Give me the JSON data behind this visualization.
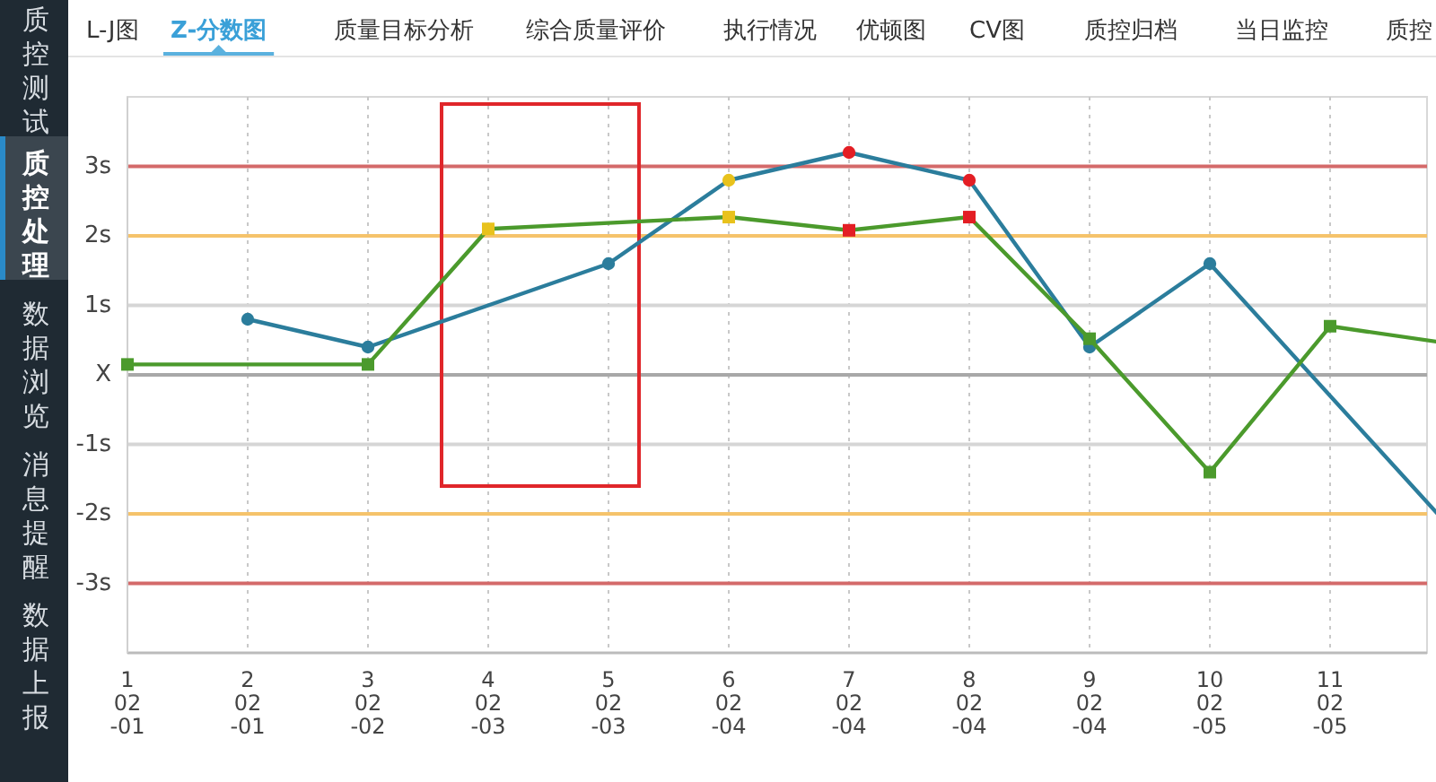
{
  "chart_data": {
    "type": "line",
    "title": "Z-分数图",
    "annotations": [
      "质控测试",
      "质控处理",
      "数据浏览",
      "消息提醒",
      "数据上报",
      "L-J图",
      "质量目标分析",
      "综合质量评价",
      "执行情况",
      "优顿图",
      "CV图",
      "质控归档",
      "当日监控",
      "质控"
    ],
    "categories": [
      "1\n02\n-01",
      "2\n02\n-01",
      "3\n02\n-02",
      "4\n02\n-03",
      "5\n02\n-03",
      "6\n02\n-04",
      "7\n02\n-04",
      "8\n02\n-04",
      "9\n02\n-04",
      "10\n02\n-05",
      "11\n02\n-05",
      null
    ],
    "series": [
      {
        "color": "#2b7d9c",
        "marker": "circle",
        "values": [
          null,
          0.8,
          0.4,
          null,
          1.6,
          2.8,
          3.2,
          2.8,
          0.4,
          1.6,
          null,
          -2.2
        ],
        "colors": [
          null,
          "#2b7d9c",
          "#2b7d9c",
          null,
          "#2b7d9c",
          "#e8c21c",
          "#e31e24",
          "#e31e24",
          "#2b7d9c",
          "#2b7d9c",
          null,
          null
        ]
      },
      {
        "color": "#4b9a2c",
        "marker": "square",
        "values": [
          0.15,
          null,
          0.15,
          2.1,
          null,
          2.27,
          2.08,
          2.27,
          0.52,
          -1.4,
          0.7,
          0.45
        ],
        "colors": [
          "#4b9a2c",
          null,
          "#4b9a2c",
          "#e8c21c",
          null,
          "#e8c21c",
          "#e31e24",
          "#e31e24",
          "#4b9a2c",
          "#4b9a2c",
          "#4b9a2c",
          null
        ]
      }
    ],
    "ylim": [
      -4,
      4
    ],
    "yticks": [
      {
        "value": -3,
        "label": "-3s"
      },
      {
        "value": -2,
        "label": "-2s"
      },
      {
        "value": -1,
        "label": "-1s"
      },
      {
        "value": 0,
        "label": "X"
      },
      {
        "value": 1,
        "label": "1s"
      },
      {
        "value": 2,
        "label": "2s"
      },
      {
        "value": 3,
        "label": "3s"
      }
    ],
    "ref_lines": [
      {
        "axis": "y",
        "value": 3,
        "color": "#d46a6a"
      },
      {
        "axis": "y",
        "value": 2,
        "color": "#f5c36b"
      },
      {
        "axis": "y",
        "value": 1,
        "color": "#d6d6d6"
      },
      {
        "axis": "y",
        "value": 0,
        "color": "#a8a8a8"
      },
      {
        "axis": "y",
        "value": -1,
        "color": "#d6d6d6"
      },
      {
        "axis": "y",
        "value": -2,
        "color": "#f5c36b"
      },
      {
        "axis": "y",
        "value": -3,
        "color": "#d46a6a"
      }
    ],
    "grid": "x",
    "line_style": "solid"
  }
}
